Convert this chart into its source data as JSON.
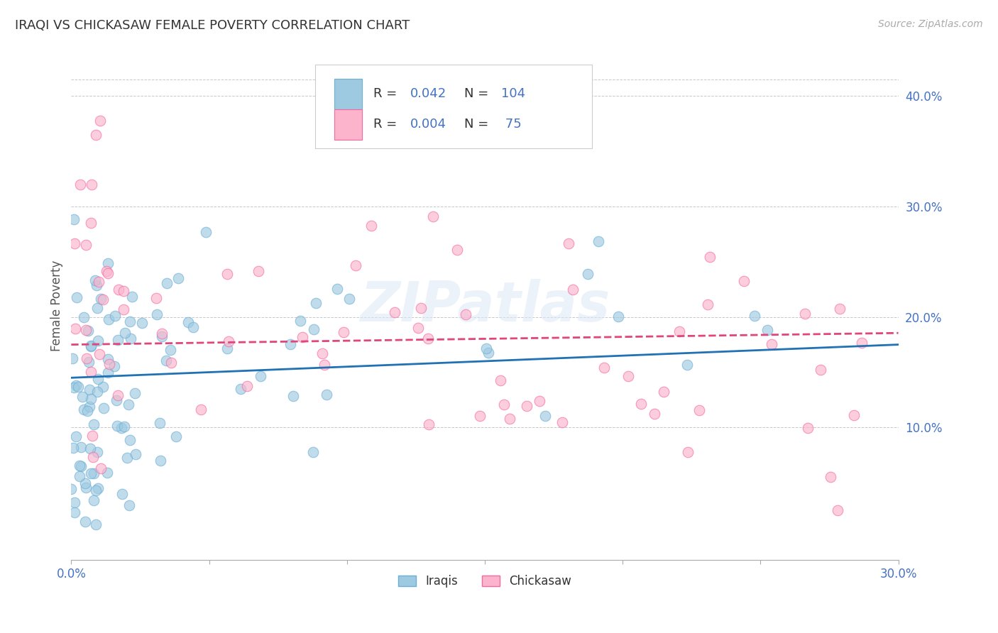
{
  "title": "IRAQI VS CHICKASAW FEMALE POVERTY CORRELATION CHART",
  "source": "Source: ZipAtlas.com",
  "ylabel": "Female Poverty",
  "xlim": [
    0.0,
    0.3
  ],
  "ylim": [
    -0.02,
    0.44
  ],
  "xticks": [
    0.0,
    0.05,
    0.1,
    0.15,
    0.2,
    0.25,
    0.3
  ],
  "xtick_labels": [
    "0.0%",
    "",
    "",
    "",
    "",
    "",
    "30.0%"
  ],
  "yticks_right": [
    0.1,
    0.2,
    0.3,
    0.4
  ],
  "ytick_labels_right": [
    "10.0%",
    "20.0%",
    "30.0%",
    "40.0%"
  ],
  "iraqis_R": 0.042,
  "iraqis_N": 104,
  "chickasaw_R": 0.004,
  "chickasaw_N": 75,
  "iraqis_color": "#9ecae1",
  "iraqis_edge_color": "#6baed6",
  "chickasaw_color": "#fbb4cb",
  "chickasaw_edge_color": "#f768a1",
  "iraqis_line_color": "#2171b5",
  "chickasaw_line_color": "#e0457b",
  "watermark": "ZIPatlas",
  "background_color": "#ffffff",
  "grid_color": "#c8c8c8",
  "axis_label_color": "#4472c4",
  "tick_label_color": "#4472c4",
  "title_color": "#333333",
  "ylabel_color": "#555555",
  "legend_text_color": "#333333",
  "legend_value_color": "#4472c4",
  "title_fontsize": 13,
  "legend_fontsize": 13
}
